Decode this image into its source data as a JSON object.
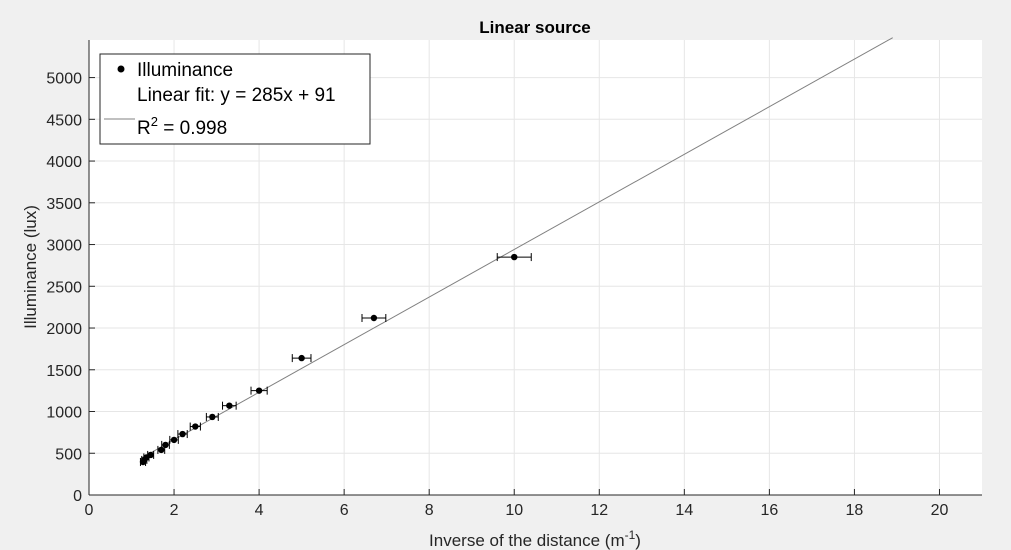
{
  "chart_data": {
    "type": "scatter",
    "title": "Linear source",
    "xlabel": "Inverse of the distance (m",
    "xlabel_sup": "-1",
    "xlabel_end": ")",
    "ylabel": "Illuminance (lux)",
    "xlim": [
      0,
      21
    ],
    "ylim": [
      0,
      5450
    ],
    "xticks": [
      0,
      2,
      4,
      6,
      8,
      10,
      12,
      14,
      16,
      18,
      20
    ],
    "yticks": [
      0,
      500,
      1000,
      1500,
      2000,
      2500,
      3000,
      3500,
      4000,
      4500,
      5000
    ],
    "grid": true,
    "legend_position": "top-left",
    "series": [
      {
        "name": "Illuminance",
        "marker": "dot",
        "color": "#000000",
        "points": [
          {
            "x": 1.27,
            "y": 395,
            "xerr": 0.06
          },
          {
            "x": 1.3,
            "y": 420,
            "xerr": 0.06
          },
          {
            "x": 1.35,
            "y": 450,
            "xerr": 0.06
          },
          {
            "x": 1.45,
            "y": 480,
            "xerr": 0.07
          },
          {
            "x": 1.7,
            "y": 540,
            "xerr": 0.08
          },
          {
            "x": 1.8,
            "y": 600,
            "xerr": 0.09
          },
          {
            "x": 2.0,
            "y": 660,
            "xerr": 0.1
          },
          {
            "x": 2.2,
            "y": 730,
            "xerr": 0.11
          },
          {
            "x": 2.5,
            "y": 820,
            "xerr": 0.12
          },
          {
            "x": 2.9,
            "y": 935,
            "xerr": 0.14
          },
          {
            "x": 3.3,
            "y": 1070,
            "xerr": 0.16
          },
          {
            "x": 4.0,
            "y": 1250,
            "xerr": 0.19
          },
          {
            "x": 5.0,
            "y": 1640,
            "xerr": 0.22
          },
          {
            "x": 6.7,
            "y": 2120,
            "xerr": 0.28
          },
          {
            "x": 10.0,
            "y": 2850,
            "xerr": 0.4
          }
        ]
      },
      {
        "name": "Linear fit: y = 285x + 91",
        "type": "line",
        "color": "#808080",
        "slope": 285,
        "intercept": 91,
        "x_range": [
          1.2,
          18.9
        ]
      }
    ],
    "legend": {
      "entries": [
        "Illuminance",
        "Linear fit: y = 285x + 91"
      ],
      "r2_prefix": "R",
      "r2_sup": "2",
      "r2_value": " = 0.998"
    }
  }
}
